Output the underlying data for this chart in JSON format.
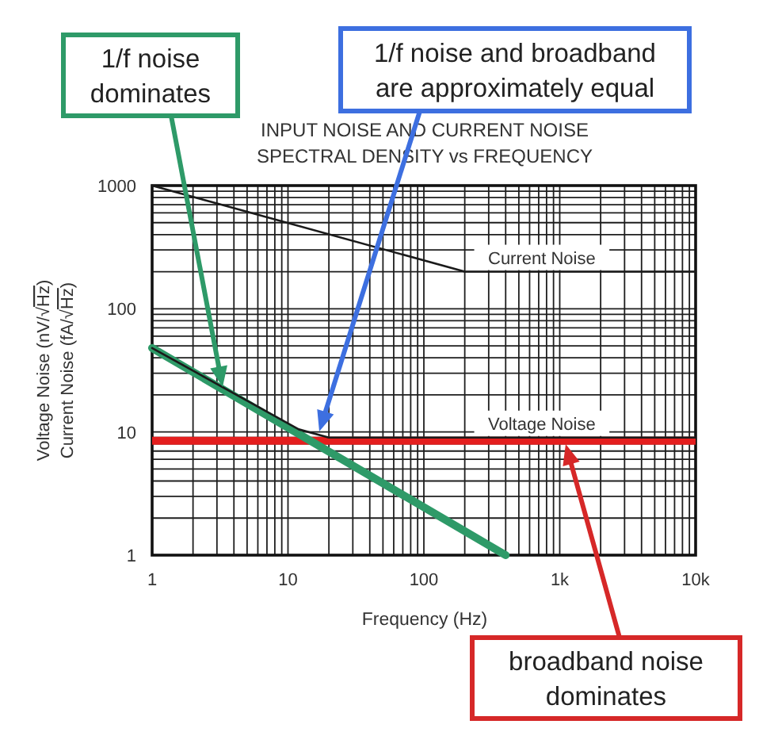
{
  "chart_data": {
    "type": "line",
    "title": "INPUT NOISE AND CURRENT NOISE\nSPECTRAL DENSITY vs FREQUENCY",
    "xlabel": "Frequency (Hz)",
    "ylabel": "Voltage Noise (nV/√Hz)\nCurrent Noise (fA/√Hz)",
    "log": "xy",
    "xlim": [
      1,
      10000
    ],
    "ylim": [
      1,
      1000
    ],
    "xticks": [
      1,
      {
        "value": 2,
        "label": null
      },
      {
        "value": 3,
        "label": null
      },
      {
        "value": 4,
        "label": null
      },
      {
        "value": 5,
        "label": null
      },
      {
        "value": 6,
        "label": null
      },
      {
        "value": 7,
        "label": null
      },
      {
        "value": 8,
        "label": null
      },
      {
        "value": 9,
        "label": null
      },
      10,
      {
        "value": 20,
        "label": null
      },
      {
        "value": 30,
        "label": null
      },
      {
        "value": 40,
        "label": null
      },
      {
        "value": 50,
        "label": null
      },
      {
        "value": 60,
        "label": null
      },
      {
        "value": 70,
        "label": null
      },
      {
        "value": 80,
        "label": null
      },
      {
        "value": 90,
        "label": null
      },
      100,
      {
        "value": 200,
        "label": null
      },
      {
        "value": 300,
        "label": null
      },
      {
        "value": 400,
        "label": null
      },
      {
        "value": 500,
        "label": null
      },
      {
        "value": 600,
        "label": null
      },
      {
        "value": 700,
        "label": null
      },
      {
        "value": 800,
        "label": null
      },
      {
        "value": 900,
        "label": null
      },
      {
        "value": 1000,
        "label": "1k"
      },
      {
        "value": 2000,
        "label": null
      },
      {
        "value": 3000,
        "label": null
      },
      {
        "value": 4000,
        "label": null
      },
      {
        "value": 5000,
        "label": null
      },
      {
        "value": 6000,
        "label": null
      },
      {
        "value": 7000,
        "label": null
      },
      {
        "value": 8000,
        "label": null
      },
      {
        "value": 9000,
        "label": null
      },
      {
        "value": 10000,
        "label": "10k"
      }
    ],
    "yticks": [
      1,
      {
        "value": 2,
        "label": null
      },
      {
        "value": 3,
        "label": null
      },
      {
        "value": 4,
        "label": null
      },
      {
        "value": 5,
        "label": null
      },
      {
        "value": 6,
        "label": null
      },
      {
        "value": 7,
        "label": null
      },
      {
        "value": 8,
        "label": null
      },
      {
        "value": 9,
        "label": null
      },
      10,
      {
        "value": 20,
        "label": null
      },
      {
        "value": 30,
        "label": null
      },
      {
        "value": 40,
        "label": null
      },
      {
        "value": 50,
        "label": null
      },
      {
        "value": 60,
        "label": null
      },
      {
        "value": 70,
        "label": null
      },
      {
        "value": 80,
        "label": null
      },
      {
        "value": 90,
        "label": null
      },
      100,
      {
        "value": 200,
        "label": null
      },
      {
        "value": 300,
        "label": null
      },
      {
        "value": 400,
        "label": null
      },
      {
        "value": 500,
        "label": null
      },
      {
        "value": 600,
        "label": null
      },
      {
        "value": 700,
        "label": null
      },
      {
        "value": 800,
        "label": null
      },
      {
        "value": 900,
        "label": null
      },
      1000
    ],
    "grid": true,
    "series": [
      {
        "color": "#2e9a68",
        "x": [
          1,
          400
        ],
        "values": [
          48,
          1
        ]
      },
      {
        "name": "Current Noise",
        "color": "#1a1a1a",
        "x": [
          1,
          200,
          10000
        ],
        "values": [
          1000,
          200,
          200
        ]
      },
      {
        "name": "Voltage Noise",
        "color": "#1a1a1a",
        "x": [
          1,
          12,
          20,
          10000
        ],
        "values": [
          48,
          10.5,
          9,
          9
        ]
      }
    ],
    "ref_lines": [
      {
        "axis": "y",
        "value": 8.5,
        "color": "#e41e1e"
      }
    ],
    "annotations": [
      "1/f noise\ndominates",
      "1/f noise and broadband\nare approximately equal",
      "broadband noise\ndominates"
    ]
  }
}
